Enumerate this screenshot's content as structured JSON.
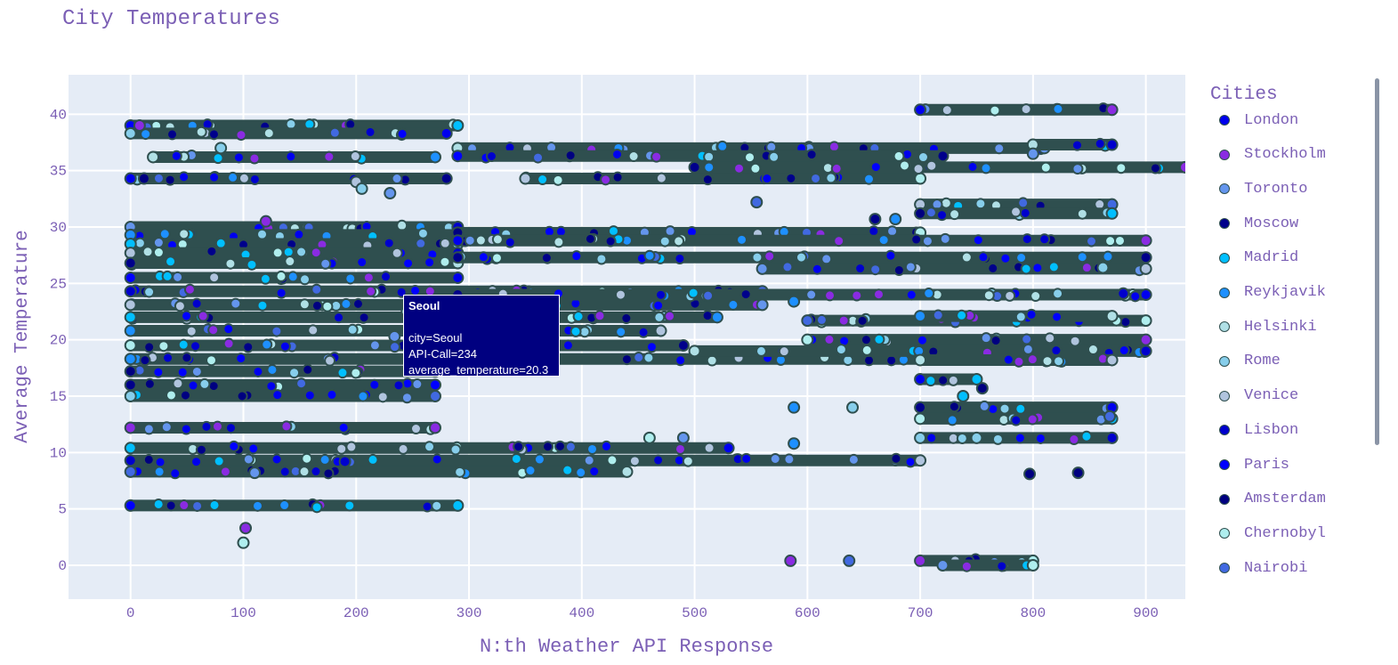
{
  "title": "City Temperatures",
  "chart_data": {
    "type": "scatter",
    "title": "City Temperatures",
    "xlabel": "N:th Weather API Response",
    "ylabel": "Average Temperature",
    "xlim": [
      -55,
      935
    ],
    "ylim": [
      -3,
      43.5
    ],
    "xticks": [
      0,
      100,
      200,
      300,
      400,
      500,
      600,
      700,
      800,
      900
    ],
    "yticks": [
      0,
      5,
      10,
      15,
      20,
      25,
      30,
      35,
      40
    ],
    "grid": true,
    "legend_title": "Cities",
    "legend_position": "right",
    "marker_edge_color": "#2f4f4f",
    "plot_background": "#e5ecf6",
    "axis_text_color": "#7b5fb5",
    "series": [
      {
        "name": "London",
        "color": "#0000ee"
      },
      {
        "name": "Stockholm",
        "color": "#8a2be2"
      },
      {
        "name": "Toronto",
        "color": "#6495ed"
      },
      {
        "name": "Moscow",
        "color": "#00008b"
      },
      {
        "name": "Madrid",
        "color": "#00bfff"
      },
      {
        "name": "Reykjavik",
        "color": "#1e90ff"
      },
      {
        "name": "Helsinki",
        "color": "#b0e0e6"
      },
      {
        "name": "Rome",
        "color": "#87ceeb"
      },
      {
        "name": "Venice",
        "color": "#b0c4de"
      },
      {
        "name": "Lisbon",
        "color": "#0000cd"
      },
      {
        "name": "Paris",
        "color": "#0000ff"
      },
      {
        "name": "Amsterdam",
        "color": "#000080"
      },
      {
        "name": "Chernobyl",
        "color": "#afeeee"
      },
      {
        "name": "Nairobi",
        "color": "#4169e1"
      }
    ],
    "bands": [
      {
        "x": [
          0,
          290
        ],
        "y": 39.0
      },
      {
        "x": [
          0,
          280
        ],
        "y": 38.3
      },
      {
        "x": [
          0,
          280
        ],
        "y": 34.3
      },
      {
        "x": [
          20,
          270
        ],
        "y": 36.2
      },
      {
        "x": [
          0,
          290
        ],
        "y": 30.0
      },
      {
        "x": [
          0,
          290
        ],
        "y": 29.3
      },
      {
        "x": [
          0,
          290
        ],
        "y": 28.5
      },
      {
        "x": [
          0,
          290
        ],
        "y": 27.7
      },
      {
        "x": [
          0,
          290
        ],
        "y": 26.8
      },
      {
        "x": [
          0,
          290
        ],
        "y": 25.5
      },
      {
        "x": [
          0,
          560
        ],
        "y": 24.3
      },
      {
        "x": [
          0,
          560
        ],
        "y": 23.1
      },
      {
        "x": [
          0,
          520
        ],
        "y": 22.0
      },
      {
        "x": [
          0,
          470
        ],
        "y": 20.8
      },
      {
        "x": [
          0,
          490
        ],
        "y": 19.5
      },
      {
        "x": [
          0,
          700
        ],
        "y": 18.3
      },
      {
        "x": [
          0,
          270
        ],
        "y": 17.2
      },
      {
        "x": [
          0,
          270
        ],
        "y": 16.0
      },
      {
        "x": [
          0,
          270
        ],
        "y": 15.0
      },
      {
        "x": [
          0,
          270
        ],
        "y": 12.2
      },
      {
        "x": [
          0,
          530
        ],
        "y": 10.4
      },
      {
        "x": [
          0,
          700
        ],
        "y": 9.3
      },
      {
        "x": [
          0,
          440
        ],
        "y": 8.3
      },
      {
        "x": [
          0,
          290
        ],
        "y": 5.3
      },
      {
        "x": [
          290,
          810
        ],
        "y": 37.0
      },
      {
        "x": [
          290,
          720
        ],
        "y": 36.3
      },
      {
        "x": [
          350,
          700
        ],
        "y": 34.3
      },
      {
        "x": [
          500,
          1030
        ],
        "y": 35.3
      },
      {
        "x": [
          290,
          700
        ],
        "y": 29.5
      },
      {
        "x": [
          290,
          900
        ],
        "y": 28.8
      },
      {
        "x": [
          290,
          900
        ],
        "y": 27.3
      },
      {
        "x": [
          560,
          900
        ],
        "y": 26.3
      },
      {
        "x": [
          290,
          900
        ],
        "y": 24.0
      },
      {
        "x": [
          600,
          900
        ],
        "y": 21.7
      },
      {
        "x": [
          600,
          900
        ],
        "y": 20.0
      },
      {
        "x": [
          500,
          900
        ],
        "y": 19.0
      },
      {
        "x": [
          700,
          870
        ],
        "y": 40.4
      },
      {
        "x": [
          800,
          870
        ],
        "y": 37.3
      },
      {
        "x": [
          700,
          870
        ],
        "y": 32.0
      },
      {
        "x": [
          700,
          870
        ],
        "y": 31.2
      },
      {
        "x": [
          700,
          870
        ],
        "y": 22.1
      },
      {
        "x": [
          700,
          870
        ],
        "y": 18.2
      },
      {
        "x": [
          700,
          750
        ],
        "y": 16.5
      },
      {
        "x": [
          700,
          870
        ],
        "y": 14.0
      },
      {
        "x": [
          700,
          870
        ],
        "y": 13.0
      },
      {
        "x": [
          700,
          870
        ],
        "y": 11.3
      },
      {
        "x": [
          700,
          800
        ],
        "y": 0.4
      },
      {
        "x": [
          720,
          800
        ],
        "y": 0.0
      }
    ],
    "points": [
      {
        "x": 8,
        "y": 39.0
      },
      {
        "x": 12,
        "y": 34.3
      },
      {
        "x": 80,
        "y": 37.0
      },
      {
        "x": 120,
        "y": 30.5
      },
      {
        "x": 200,
        "y": 34.0
      },
      {
        "x": 205,
        "y": 33.4
      },
      {
        "x": 230,
        "y": 33.0
      },
      {
        "x": 100,
        "y": 2.0
      },
      {
        "x": 102,
        "y": 3.3
      },
      {
        "x": 190,
        "y": 9.2
      },
      {
        "x": 110,
        "y": 8.2
      },
      {
        "x": 245,
        "y": 22.5
      },
      {
        "x": 234,
        "y": 20.3
      },
      {
        "x": 460,
        "y": 11.3
      },
      {
        "x": 490,
        "y": 11.3
      },
      {
        "x": 555,
        "y": 32.2
      },
      {
        "x": 588,
        "y": 14.0
      },
      {
        "x": 588,
        "y": 10.8
      },
      {
        "x": 640,
        "y": 14.0
      },
      {
        "x": 585,
        "y": 0.4
      },
      {
        "x": 637,
        "y": 0.4
      },
      {
        "x": 660,
        "y": 30.7
      },
      {
        "x": 678,
        "y": 30.7
      },
      {
        "x": 738,
        "y": 15.0
      },
      {
        "x": 750,
        "y": 11.3
      },
      {
        "x": 755,
        "y": 15.7
      },
      {
        "x": 797,
        "y": 8.1
      },
      {
        "x": 840,
        "y": 8.2
      },
      {
        "x": 880,
        "y": 24.1
      },
      {
        "x": 868,
        "y": 13.2
      },
      {
        "x": 862,
        "y": 26.4
      },
      {
        "x": 588,
        "y": 23.4
      },
      {
        "x": 800,
        "y": 36.5
      }
    ]
  },
  "tooltip": {
    "title": "Seoul",
    "line1": "city=Seoul",
    "line2": "API-Call=234",
    "line3": "average_temperature=20.3"
  }
}
